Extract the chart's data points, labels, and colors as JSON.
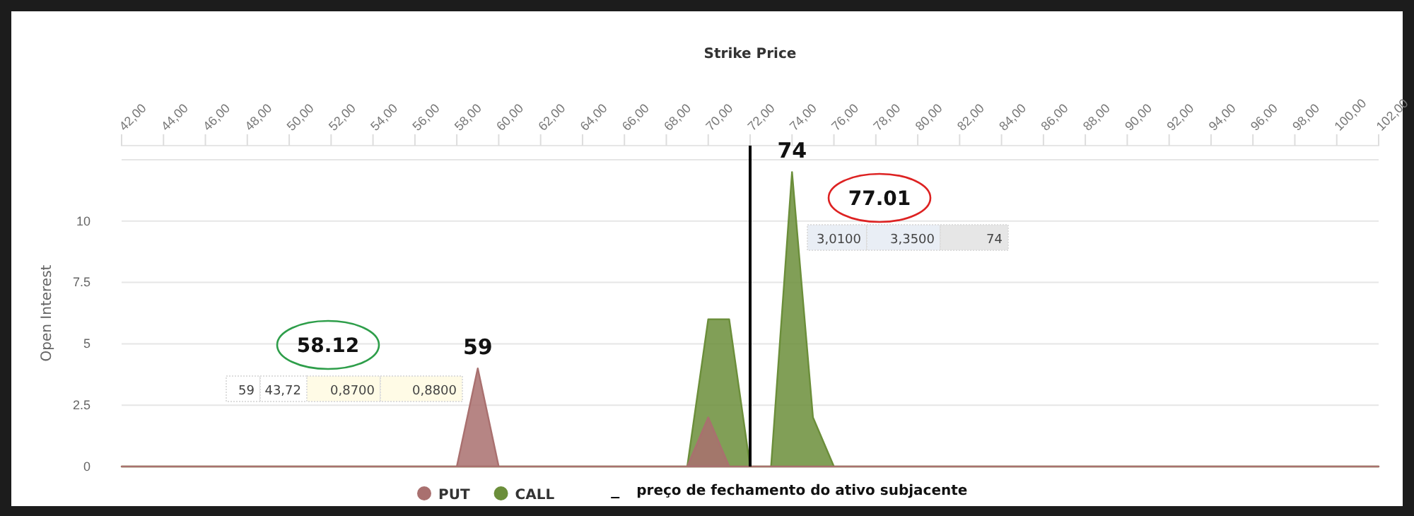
{
  "chart_data": {
    "type": "area",
    "xlabel": "Strike Price",
    "ylabel": "Open Interest",
    "x": [
      42,
      43,
      44,
      45,
      46,
      47,
      48,
      49,
      50,
      51,
      52,
      53,
      54,
      55,
      56,
      57,
      58,
      59,
      60,
      61,
      62,
      63,
      64,
      65,
      66,
      67,
      68,
      69,
      70,
      71,
      72,
      73,
      74,
      75,
      76,
      77,
      78,
      79,
      80,
      81,
      82,
      83,
      84,
      85,
      86,
      87,
      88,
      89,
      90,
      91,
      92,
      93,
      94,
      95,
      96,
      97,
      98,
      99,
      100,
      101,
      102
    ],
    "series": [
      {
        "name": "CALL",
        "color": "#6b8e3a",
        "values": [
          0,
          0,
          0,
          0,
          0,
          0,
          0,
          0,
          0,
          0,
          0,
          0,
          0,
          0,
          0,
          0,
          0,
          0,
          0,
          0,
          0,
          0,
          0,
          0,
          0,
          0,
          0,
          0,
          6,
          6,
          0,
          0,
          12,
          2,
          0,
          0,
          0,
          0,
          0,
          0,
          0,
          0,
          0,
          0,
          0,
          0,
          0,
          0,
          0,
          0,
          0,
          0,
          0,
          0,
          0,
          0,
          0,
          0,
          0,
          0,
          0
        ]
      },
      {
        "name": "PUT",
        "color": "#a9706f",
        "values": [
          0,
          0,
          0,
          0,
          0,
          0,
          0,
          0,
          0,
          0,
          0,
          0,
          0,
          0,
          0,
          0,
          0,
          4,
          0,
          0,
          0,
          0,
          0,
          0,
          0,
          0,
          0,
          0,
          2,
          0,
          0,
          0,
          0,
          0,
          0,
          0,
          0,
          0,
          0,
          0,
          0,
          0,
          0,
          0,
          0,
          0,
          0,
          0,
          0,
          0,
          0,
          0,
          0,
          0,
          0,
          0,
          0,
          0,
          0,
          0,
          0
        ]
      }
    ],
    "xlim": [
      42,
      102
    ],
    "xticks": [
      {
        "value": 42,
        "label": "42,00"
      },
      {
        "value": 44,
        "label": "44,00"
      },
      {
        "value": 46,
        "label": "46,00"
      },
      {
        "value": 48,
        "label": "48,00"
      },
      {
        "value": 50,
        "label": "50,00"
      },
      {
        "value": 52,
        "label": "52,00"
      },
      {
        "value": 54,
        "label": "54,00"
      },
      {
        "value": 56,
        "label": "56,00"
      },
      {
        "value": 58,
        "label": "58,00"
      },
      {
        "value": 60,
        "label": "60,00"
      },
      {
        "value": 62,
        "label": "62,00"
      },
      {
        "value": 64,
        "label": "64,00"
      },
      {
        "value": 66,
        "label": "66,00"
      },
      {
        "value": 68,
        "label": "68,00"
      },
      {
        "value": 70,
        "label": "70,00"
      },
      {
        "value": 72,
        "label": "72,00"
      },
      {
        "value": 74,
        "label": "74,00"
      },
      {
        "value": 76,
        "label": "76,00"
      },
      {
        "value": 78,
        "label": "78,00"
      },
      {
        "value": 80,
        "label": "80,00"
      },
      {
        "value": 82,
        "label": "82,00"
      },
      {
        "value": 84,
        "label": "84,00"
      },
      {
        "value": 86,
        "label": "86,00"
      },
      {
        "value": 88,
        "label": "88,00"
      },
      {
        "value": 90,
        "label": "90,00"
      },
      {
        "value": 92,
        "label": "92,00"
      },
      {
        "value": 94,
        "label": "94,00"
      },
      {
        "value": 96,
        "label": "96,00"
      },
      {
        "value": 98,
        "label": "98,00"
      },
      {
        "value": 100,
        "label": "100,00"
      },
      {
        "value": 102,
        "label": "102,00"
      }
    ],
    "ylim": [
      0,
      12.5
    ],
    "yticks": [
      0,
      2.5,
      5,
      7.5,
      10,
      {
        "value": 12.5,
        "label": null
      }
    ],
    "grid": "y",
    "legend": "bottom",
    "marker": "none",
    "ref_lines": [
      {
        "axis": "x",
        "value": 72,
        "label": "preço de fechamento do ativo subjacente",
        "color": "#000000"
      }
    ],
    "annotations": [
      {
        "text": "59",
        "x": 59,
        "y": 4
      },
      {
        "text": "74",
        "x": 74,
        "y": 12
      },
      "58.12",
      "77.01",
      "59",
      "43,72",
      "0,8700",
      "0,8800",
      "3,0100",
      "3,3500",
      "74"
    ]
  }
}
